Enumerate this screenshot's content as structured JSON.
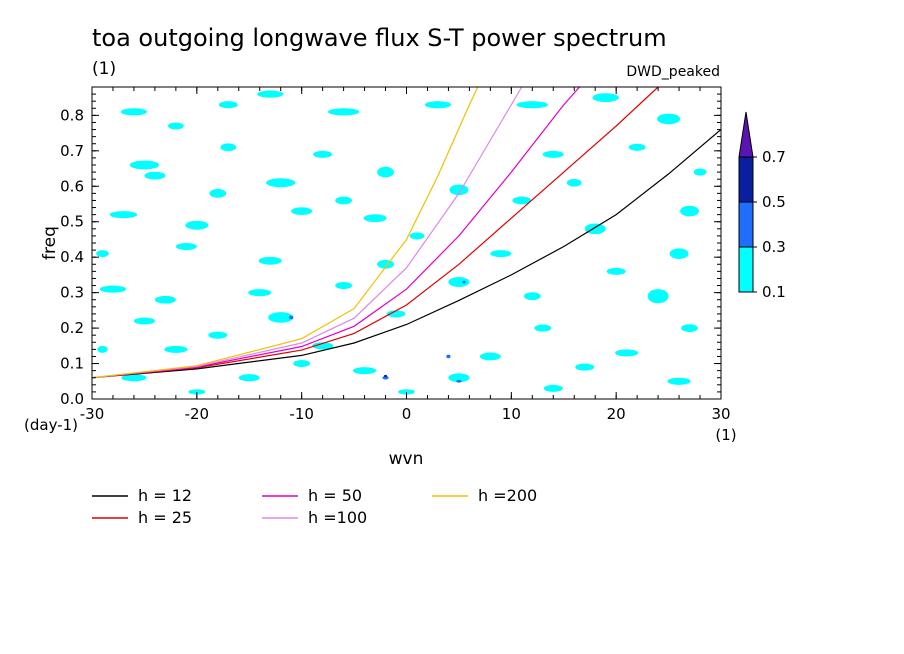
{
  "chart_data": {
    "type": "heatmap",
    "title": "toa outgoing longwave flux S-T power spectrum",
    "subtitle": "(1)",
    "source_label": "DWD_peaked",
    "xlabel": "wvn",
    "ylabel": "freq",
    "x_unit_label": "(1)",
    "y_unit_label": "(day-1)",
    "xlim": [
      -30,
      30
    ],
    "ylim": [
      0,
      0.88
    ],
    "x_ticks": [
      -30,
      -20,
      -10,
      0,
      10,
      20,
      30
    ],
    "x_tick_labels": [
      "-30",
      "-20",
      "-10",
      "0",
      "10",
      "20",
      "30"
    ],
    "y_ticks": [
      0,
      0.1,
      0.2,
      0.3,
      0.4,
      0.5,
      0.6,
      0.7,
      0.8
    ],
    "y_tick_labels": [
      "0.0",
      "0.1",
      "0.2",
      "0.3",
      "0.4",
      "0.5",
      "0.6",
      "0.7",
      "0.8"
    ],
    "colorbar": {
      "levels": [
        "0.1",
        "0.3",
        "0.5",
        "0.7"
      ],
      "colors": [
        "#00ffff",
        "#1e6eff",
        "#0a1ea0",
        "#5a14b4"
      ]
    },
    "contour_patches": [
      {
        "x": -26,
        "y": 0.81,
        "w": 2.5,
        "h": 0.02,
        "level": 0
      },
      {
        "x": -22,
        "y": 0.77,
        "w": 1.5,
        "h": 0.02,
        "level": 0
      },
      {
        "x": -17,
        "y": 0.83,
        "w": 1.8,
        "h": 0.02,
        "level": 0
      },
      {
        "x": -13,
        "y": 0.86,
        "w": 2.5,
        "h": 0.02,
        "level": 0
      },
      {
        "x": -6,
        "y": 0.81,
        "w": 3,
        "h": 0.02,
        "level": 0
      },
      {
        "x": 3,
        "y": 0.83,
        "w": 2.5,
        "h": 0.02,
        "level": 0
      },
      {
        "x": 12,
        "y": 0.83,
        "w": 3,
        "h": 0.02,
        "level": 0
      },
      {
        "x": 19,
        "y": 0.85,
        "w": 2.5,
        "h": 0.025,
        "level": 0
      },
      {
        "x": 25,
        "y": 0.79,
        "w": 2.2,
        "h": 0.03,
        "level": 0
      },
      {
        "x": -25,
        "y": 0.66,
        "w": 2.8,
        "h": 0.025,
        "level": 0
      },
      {
        "x": -24,
        "y": 0.63,
        "w": 2.0,
        "h": 0.022,
        "level": 0
      },
      {
        "x": -12,
        "y": 0.61,
        "w": 2.8,
        "h": 0.025,
        "level": 0
      },
      {
        "x": -8,
        "y": 0.69,
        "w": 1.8,
        "h": 0.02,
        "level": 0
      },
      {
        "x": -17,
        "y": 0.71,
        "w": 1.5,
        "h": 0.022,
        "level": 0
      },
      {
        "x": -2,
        "y": 0.64,
        "w": 1.6,
        "h": 0.03,
        "level": 0
      },
      {
        "x": 5,
        "y": 0.59,
        "w": 1.8,
        "h": 0.03,
        "level": 0
      },
      {
        "x": 14,
        "y": 0.69,
        "w": 2.0,
        "h": 0.02,
        "level": 0
      },
      {
        "x": 22,
        "y": 0.71,
        "w": 1.6,
        "h": 0.02,
        "level": 0
      },
      {
        "x": -27,
        "y": 0.52,
        "w": 2.6,
        "h": 0.02,
        "level": 0
      },
      {
        "x": -20,
        "y": 0.49,
        "w": 2.2,
        "h": 0.025,
        "level": 0
      },
      {
        "x": -10,
        "y": 0.53,
        "w": 2.0,
        "h": 0.022,
        "level": 0
      },
      {
        "x": -3,
        "y": 0.51,
        "w": 2.2,
        "h": 0.022,
        "level": 0
      },
      {
        "x": 18,
        "y": 0.48,
        "w": 2.0,
        "h": 0.03,
        "level": 0
      },
      {
        "x": 27,
        "y": 0.53,
        "w": 1.8,
        "h": 0.03,
        "level": 0
      },
      {
        "x": -21,
        "y": 0.43,
        "w": 2.0,
        "h": 0.02,
        "level": 0
      },
      {
        "x": -13,
        "y": 0.39,
        "w": 2.2,
        "h": 0.022,
        "level": 0
      },
      {
        "x": -2,
        "y": 0.38,
        "w": 1.6,
        "h": 0.025,
        "level": 0
      },
      {
        "x": 9,
        "y": 0.41,
        "w": 2.0,
        "h": 0.02,
        "level": 0
      },
      {
        "x": 26,
        "y": 0.41,
        "w": 1.8,
        "h": 0.03,
        "level": 0
      },
      {
        "x": -28,
        "y": 0.31,
        "w": 2.5,
        "h": 0.02,
        "level": 0
      },
      {
        "x": -23,
        "y": 0.28,
        "w": 2.0,
        "h": 0.022,
        "level": 0
      },
      {
        "x": -14,
        "y": 0.3,
        "w": 2.2,
        "h": 0.02,
        "level": 0
      },
      {
        "x": 5,
        "y": 0.33,
        "w": 2.0,
        "h": 0.028,
        "level": 0
      },
      {
        "x": 24,
        "y": 0.29,
        "w": 2.0,
        "h": 0.04,
        "level": 0
      },
      {
        "x": -25,
        "y": 0.22,
        "w": 2.0,
        "h": 0.02,
        "level": 0
      },
      {
        "x": -12,
        "y": 0.23,
        "w": 2.4,
        "h": 0.03,
        "level": 0
      },
      {
        "x": -1,
        "y": 0.24,
        "w": 1.8,
        "h": 0.02,
        "level": 0
      },
      {
        "x": 13,
        "y": 0.2,
        "w": 1.6,
        "h": 0.02,
        "level": 0
      },
      {
        "x": -22,
        "y": 0.14,
        "w": 2.2,
        "h": 0.02,
        "level": 0
      },
      {
        "x": -8,
        "y": 0.15,
        "w": 2.0,
        "h": 0.02,
        "level": 0
      },
      {
        "x": 8,
        "y": 0.12,
        "w": 2.0,
        "h": 0.022,
        "level": 0
      },
      {
        "x": 21,
        "y": 0.13,
        "w": 2.2,
        "h": 0.02,
        "level": 0
      },
      {
        "x": -26,
        "y": 0.06,
        "w": 2.4,
        "h": 0.02,
        "level": 0
      },
      {
        "x": -15,
        "y": 0.06,
        "w": 2.0,
        "h": 0.02,
        "level": 0
      },
      {
        "x": -4,
        "y": 0.08,
        "w": 2.2,
        "h": 0.02,
        "level": 0
      },
      {
        "x": 5,
        "y": 0.06,
        "w": 2.0,
        "h": 0.025,
        "level": 0
      },
      {
        "x": 14,
        "y": 0.03,
        "w": 1.8,
        "h": 0.02,
        "level": 0
      },
      {
        "x": 26,
        "y": 0.05,
        "w": 2.2,
        "h": 0.02,
        "level": 0
      },
      {
        "x": -11,
        "y": 0.23,
        "w": 0.4,
        "h": 0.01,
        "level": 1
      },
      {
        "x": -2,
        "y": 0.06,
        "w": 0.6,
        "h": 0.01,
        "level": 1
      },
      {
        "x": 4,
        "y": 0.12,
        "w": 0.4,
        "h": 0.01,
        "level": 1
      },
      {
        "x": 5,
        "y": 0.05,
        "w": 0.5,
        "h": 0.008,
        "level": 1
      },
      {
        "x": 5.5,
        "y": 0.33,
        "w": 0.3,
        "h": 0.008,
        "level": 1
      },
      {
        "x": -2,
        "y": 0.065,
        "w": 0.3,
        "h": 0.006,
        "level": 2
      },
      {
        "x": -6,
        "y": 0.56,
        "w": 1.6,
        "h": 0.022,
        "level": 0
      },
      {
        "x": -18,
        "y": 0.58,
        "w": 1.6,
        "h": 0.025,
        "level": 0
      },
      {
        "x": 11,
        "y": 0.56,
        "w": 1.8,
        "h": 0.022,
        "level": 0
      },
      {
        "x": 16,
        "y": 0.61,
        "w": 1.4,
        "h": 0.022,
        "level": 0
      },
      {
        "x": 28,
        "y": 0.64,
        "w": 1.2,
        "h": 0.02,
        "level": 0
      },
      {
        "x": -29,
        "y": 0.41,
        "w": 1.2,
        "h": 0.02,
        "level": 0
      },
      {
        "x": 1,
        "y": 0.46,
        "w": 1.4,
        "h": 0.02,
        "level": 0
      },
      {
        "x": 20,
        "y": 0.36,
        "w": 1.8,
        "h": 0.02,
        "level": 0
      },
      {
        "x": -6,
        "y": 0.32,
        "w": 1.6,
        "h": 0.02,
        "level": 0
      },
      {
        "x": 12,
        "y": 0.29,
        "w": 1.6,
        "h": 0.022,
        "level": 0
      },
      {
        "x": -18,
        "y": 0.18,
        "w": 1.8,
        "h": 0.02,
        "level": 0
      },
      {
        "x": 27,
        "y": 0.2,
        "w": 1.6,
        "h": 0.022,
        "level": 0
      },
      {
        "x": -10,
        "y": 0.1,
        "w": 1.6,
        "h": 0.02,
        "level": 0
      },
      {
        "x": 17,
        "y": 0.09,
        "w": 1.8,
        "h": 0.02,
        "level": 0
      },
      {
        "x": -29,
        "y": 0.14,
        "w": 1.0,
        "h": 0.02,
        "level": 0
      },
      {
        "x": 0,
        "y": 0.02,
        "w": 1.6,
        "h": 0.015,
        "level": 0
      },
      {
        "x": -20,
        "y": 0.02,
        "w": 1.6,
        "h": 0.015,
        "level": 0
      }
    ],
    "series": [
      {
        "name": "h = 12",
        "color": "#000000",
        "x": [
          -30,
          -20,
          -10,
          -5,
          0,
          5,
          10,
          15,
          20,
          25,
          30
        ],
        "y": [
          0.06,
          0.085,
          0.123,
          0.158,
          0.21,
          0.278,
          0.35,
          0.43,
          0.52,
          0.635,
          0.76
        ]
      },
      {
        "name": "h = 25",
        "color": "#e00000",
        "x": [
          -30,
          -20,
          -10,
          -5,
          0,
          5,
          10,
          15,
          20,
          24
        ],
        "y": [
          0.06,
          0.088,
          0.138,
          0.185,
          0.265,
          0.38,
          0.51,
          0.64,
          0.77,
          0.88
        ]
      },
      {
        "name": "h = 50",
        "color": "#e000c8",
        "x": [
          -30,
          -20,
          -10,
          -5,
          0,
          5,
          10,
          15,
          16.5
        ],
        "y": [
          0.06,
          0.09,
          0.148,
          0.205,
          0.31,
          0.46,
          0.64,
          0.83,
          0.88
        ]
      },
      {
        "name": "h =100",
        "color": "#dd88ee",
        "x": [
          -30,
          -20,
          -10,
          -5,
          0,
          5,
          10,
          11
        ],
        "y": [
          0.06,
          0.092,
          0.158,
          0.228,
          0.37,
          0.58,
          0.83,
          0.88
        ]
      },
      {
        "name": "h =200",
        "color": "#f0c000",
        "x": [
          -30,
          -20,
          -10,
          -5,
          0,
          3,
          6,
          6.8
        ],
        "y": [
          0.06,
          0.094,
          0.17,
          0.255,
          0.45,
          0.63,
          0.83,
          0.88
        ]
      }
    ]
  }
}
